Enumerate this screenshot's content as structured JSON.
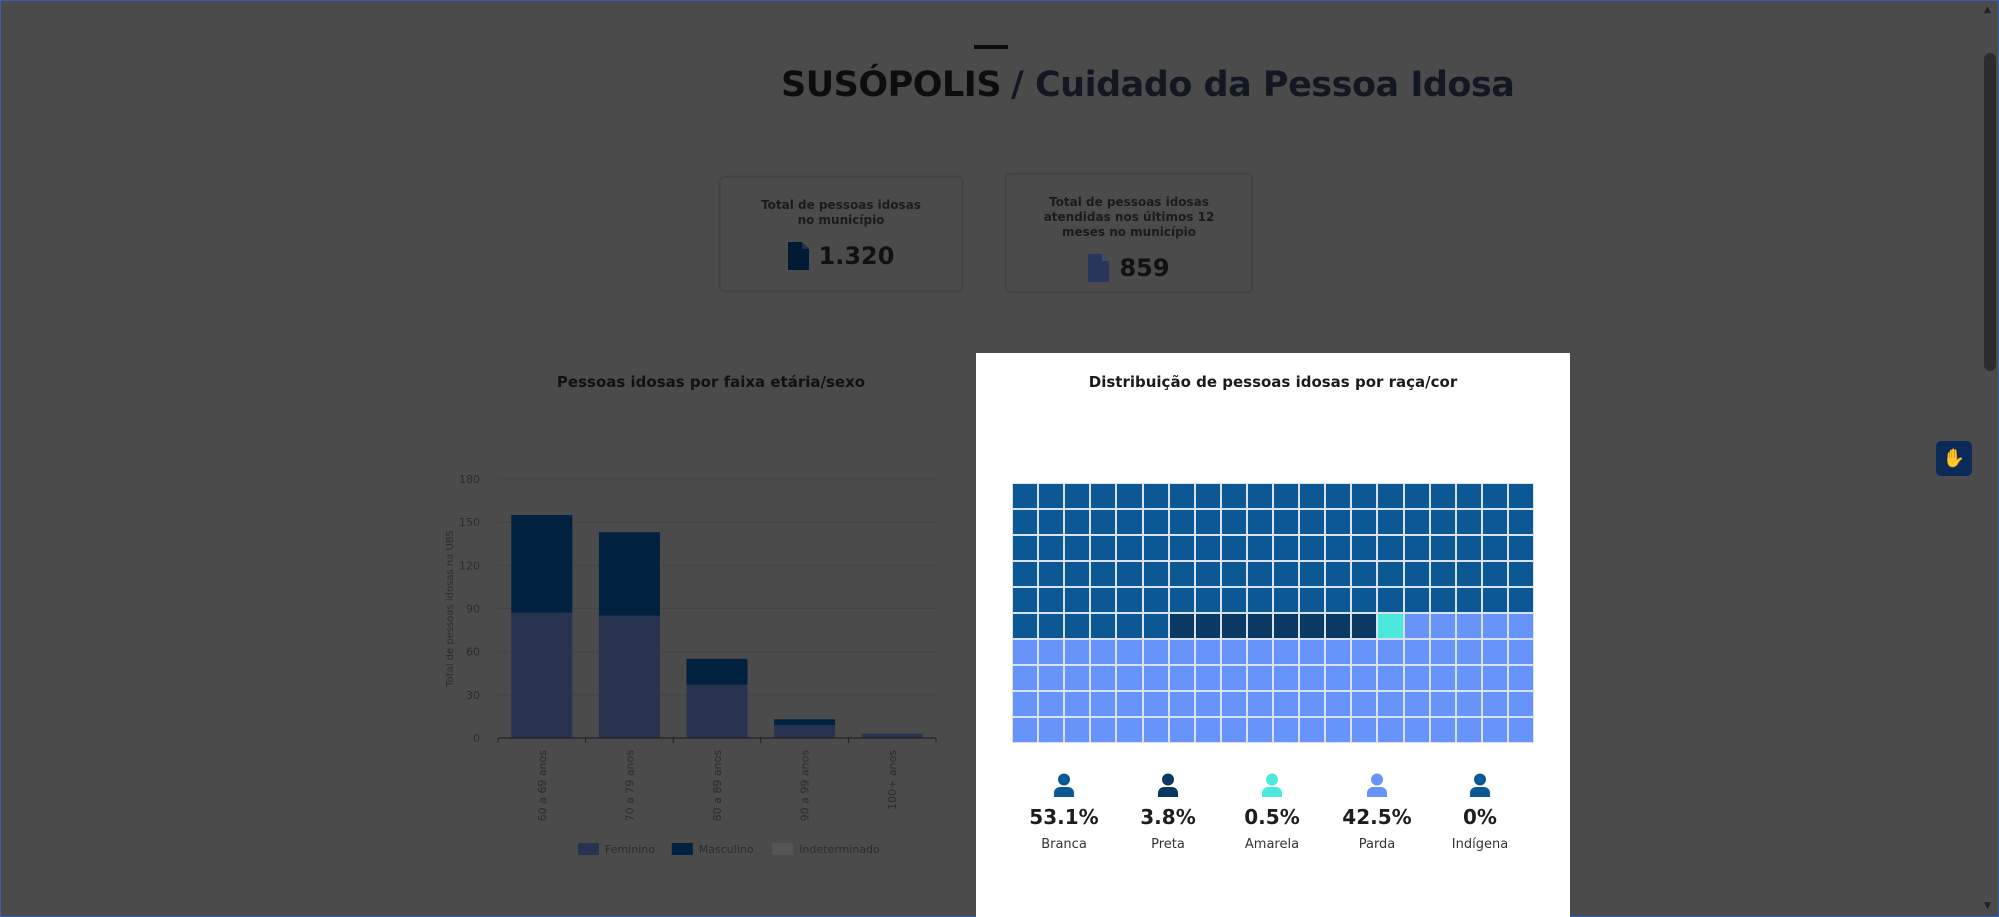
{
  "header": {
    "city": "SUSÓPOLIS",
    "title": "/ Cuidado da Pessoa Idosa"
  },
  "cards": [
    {
      "label": "Total de pessoas idosas no município",
      "value": "1.320",
      "icon": "document-icon",
      "icon_color": "#001a33"
    },
    {
      "label": "Total de pessoas idosas atendidas nos últimos 12 meses no município",
      "value": "859",
      "icon": "document-icon",
      "icon_color": "#27365a"
    }
  ],
  "chart_data": [
    {
      "type": "bar",
      "stacked": true,
      "title": "Pessoas idosas por faixa etária/sexo",
      "ylabel": "Total de pessoas idosas na UBS",
      "xlabel": "",
      "ylim": [
        0,
        180
      ],
      "yticks": [
        0,
        30,
        60,
        90,
        120,
        150,
        180
      ],
      "grid": true,
      "legend_position": "bottom",
      "categories": [
        "60 a 69 anos",
        "70 a 79 anos",
        "80 a 89 anos",
        "90 a 99 anos",
        "100+ anos"
      ],
      "series": [
        {
          "name": "Feminino",
          "color": "#28344f",
          "values": [
            87,
            85,
            37,
            9,
            3
          ]
        },
        {
          "name": "Masculino",
          "color": "#00213f",
          "values": [
            68,
            58,
            18,
            4,
            0
          ]
        },
        {
          "name": "Indeterminado",
          "color": "#555555",
          "values": [
            0,
            0,
            0,
            0,
            0
          ]
        }
      ]
    },
    {
      "type": "waffle",
      "title": "Distribuição de pessoas idosas por raça/cor",
      "grid": "20x10",
      "categories": [
        {
          "name": "Branca",
          "percent": "53.1%",
          "cells": 106,
          "color": "#0b5895"
        },
        {
          "name": "Preta",
          "percent": "3.8%",
          "cells": 8,
          "color": "#0a3a63"
        },
        {
          "name": "Amarela",
          "percent": "0.5%",
          "cells": 1,
          "color": "#4de8dc"
        },
        {
          "name": "Parda",
          "percent": "42.5%",
          "cells": 85,
          "color": "#6694fb"
        },
        {
          "name": "Indígena",
          "percent": "0%",
          "cells": 0,
          "color": "#0b5895"
        }
      ]
    }
  ],
  "accessibility": {
    "icon": "sign-language-icon"
  }
}
